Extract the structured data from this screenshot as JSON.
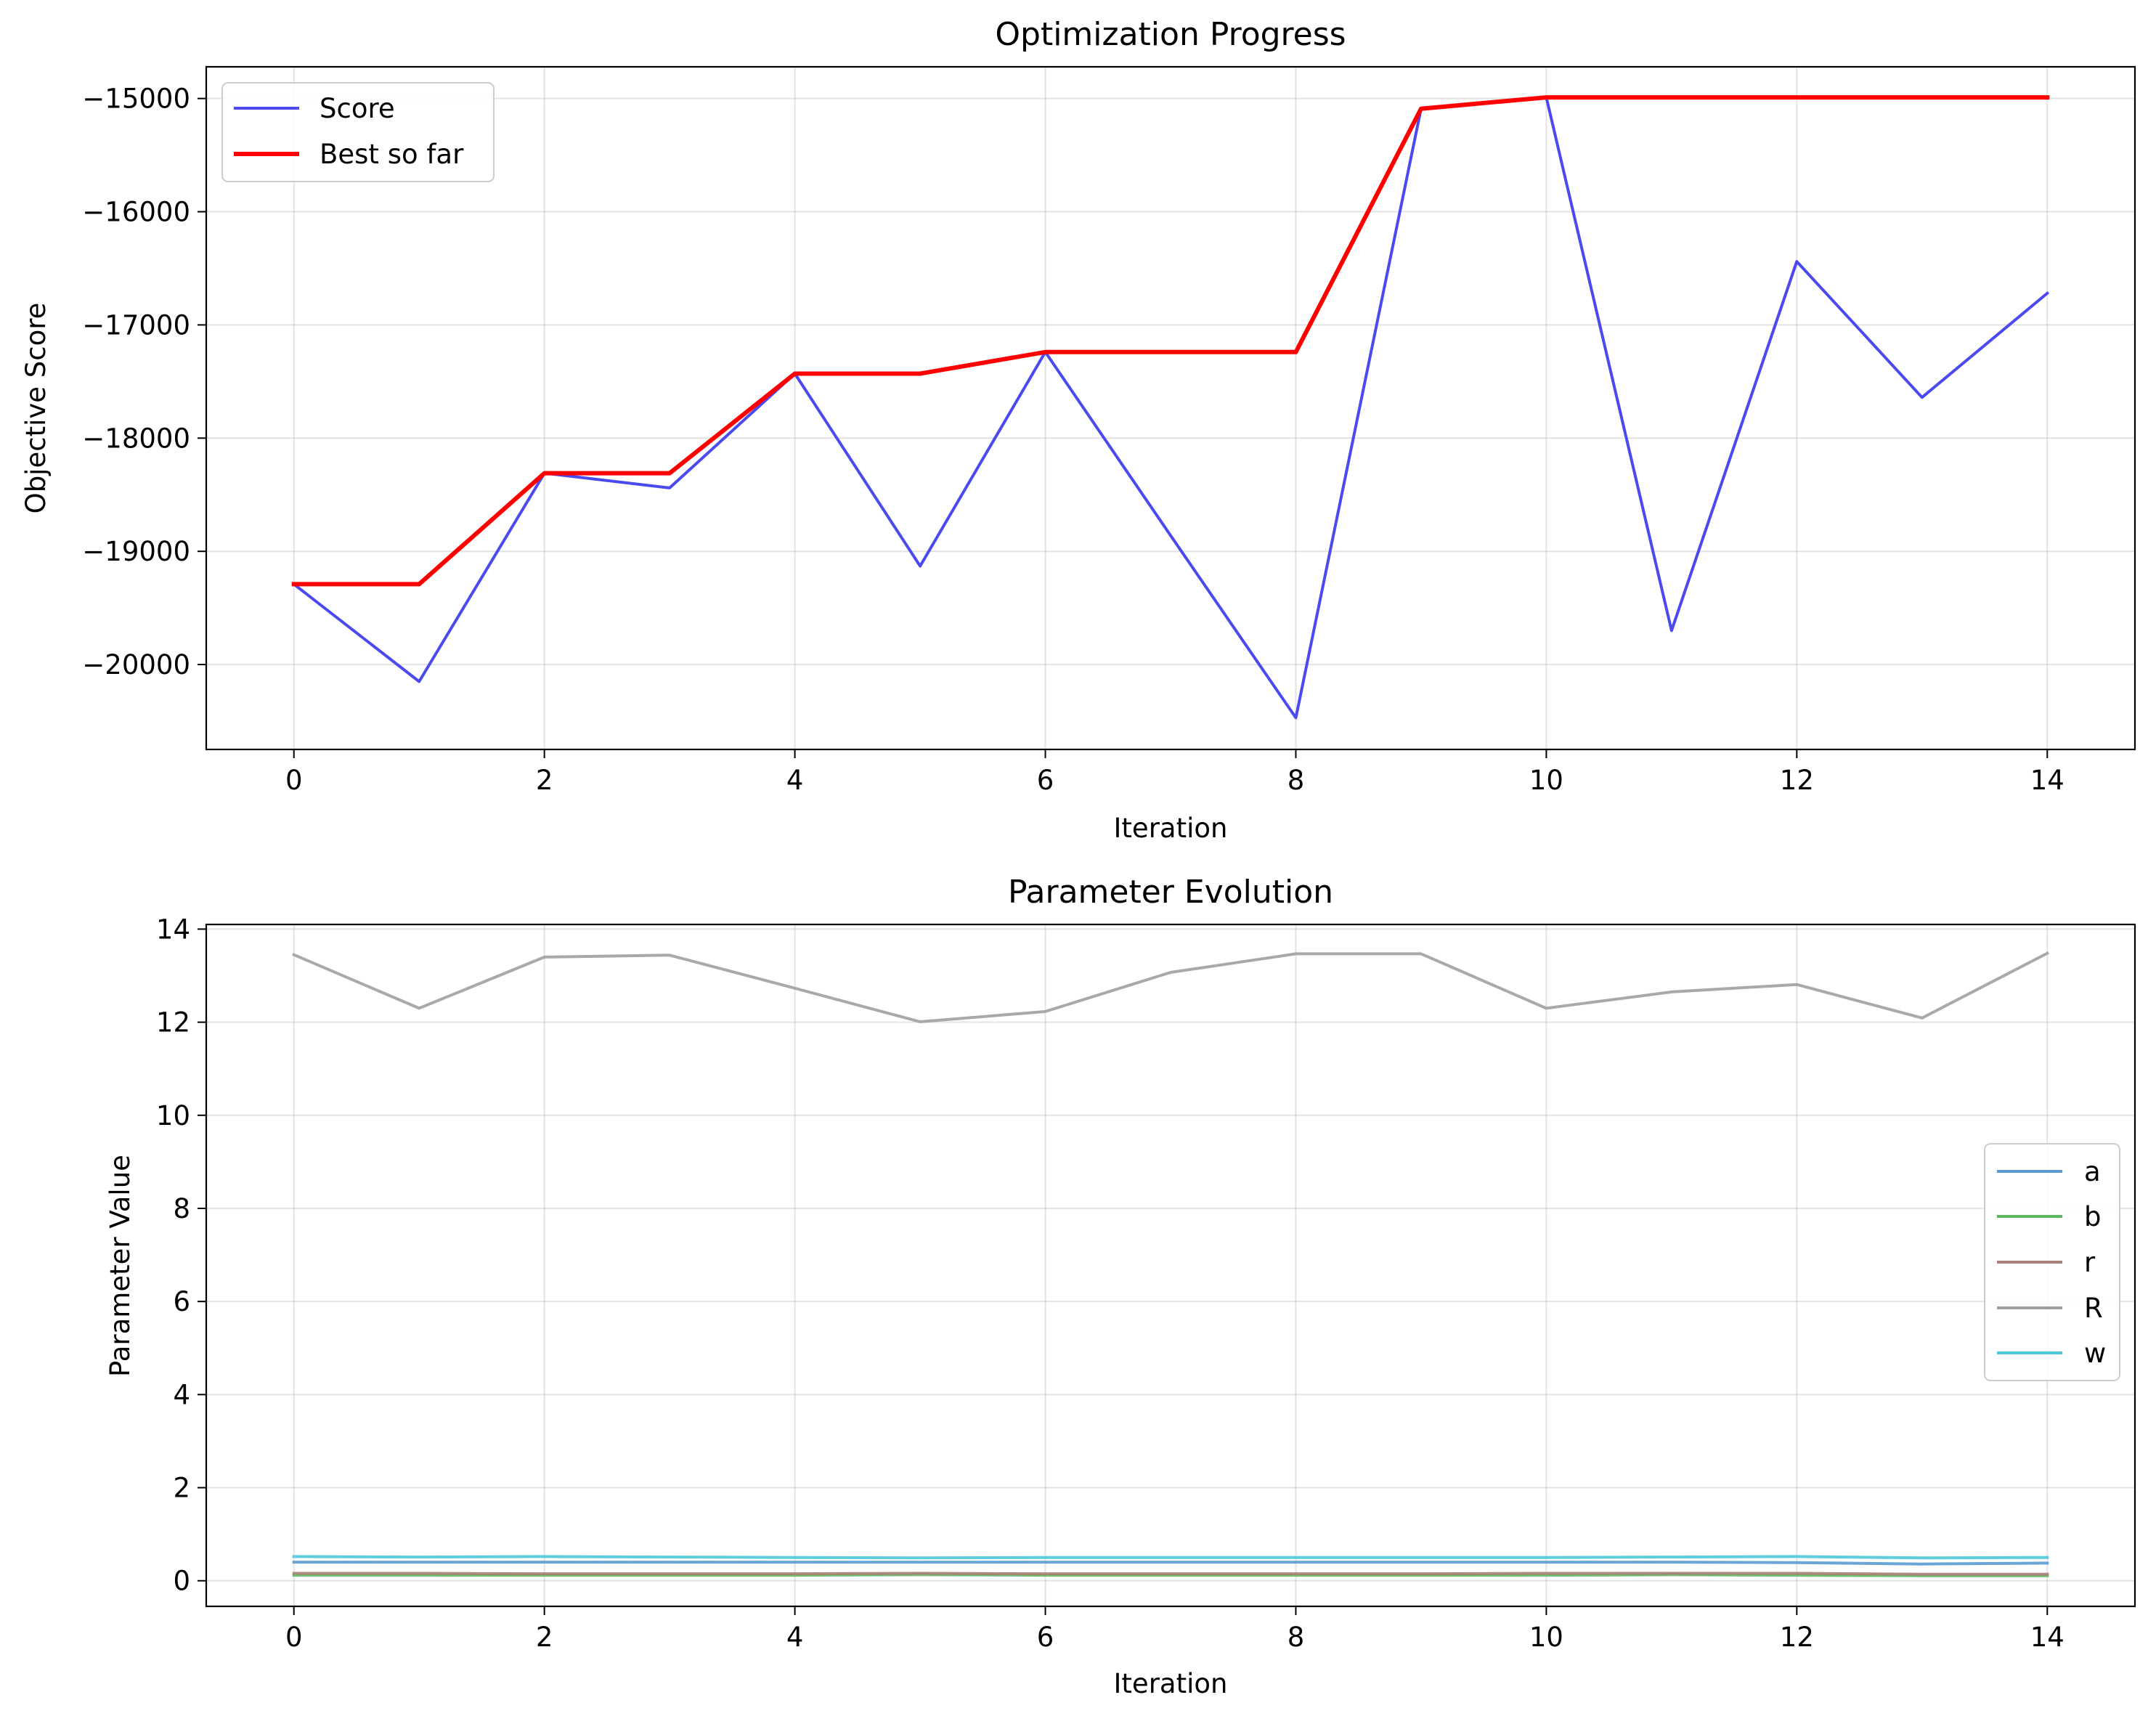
{
  "chart_data": [
    {
      "type": "line",
      "title": "Optimization Progress",
      "xlabel": "Iteration",
      "ylabel": "Objective Score",
      "xlim": [
        -0.7,
        14.7
      ],
      "ylim": [
        -20750,
        -14720
      ],
      "xticks": [
        0,
        2,
        4,
        6,
        8,
        10,
        12,
        14
      ],
      "yticks": [
        -20000,
        -19000,
        -18000,
        -17000,
        -16000,
        -15000
      ],
      "ytick_labels": [
        "−20000",
        "−19000",
        "−18000",
        "−17000",
        "−16000",
        "−15000"
      ],
      "grid": true,
      "legend_position": "top-left",
      "x": [
        0,
        1,
        2,
        3,
        4,
        5,
        6,
        7,
        8,
        9,
        10,
        11,
        12,
        13,
        14
      ],
      "series": [
        {
          "name": "Score",
          "color": "#4a4af0",
          "values": [
            -19290,
            -20150,
            -18310,
            -18440,
            -17430,
            -19130,
            -17240,
            -18860,
            -20470,
            -15090,
            -14990,
            -19700,
            -16440,
            -17640,
            -16720
          ]
        },
        {
          "name": "Best so far",
          "color": "#ff0000",
          "values": [
            -19290,
            -19290,
            -18310,
            -18310,
            -17430,
            -17430,
            -17240,
            -17240,
            -17240,
            -15090,
            -14990,
            -14990,
            -14990,
            -14990,
            -14990
          ]
        }
      ]
    },
    {
      "type": "line",
      "title": "Parameter Evolution",
      "xlabel": "Iteration",
      "ylabel": "Parameter Value",
      "xlim": [
        -0.7,
        14.7
      ],
      "ylim": [
        -0.55,
        14.1
      ],
      "xticks": [
        0,
        2,
        4,
        6,
        8,
        10,
        12,
        14
      ],
      "yticks": [
        0,
        2,
        4,
        6,
        8,
        10,
        12,
        14
      ],
      "ytick_labels": [
        "0",
        "2",
        "4",
        "6",
        "8",
        "10",
        "12",
        "14"
      ],
      "grid": true,
      "legend_position": "center-right",
      "x": [
        0,
        1,
        2,
        3,
        4,
        5,
        6,
        7,
        8,
        9,
        10,
        11,
        12,
        13,
        14
      ],
      "series": [
        {
          "name": "a",
          "color": "#5b9bd0",
          "values": [
            0.4,
            0.4,
            0.4,
            0.4,
            0.4,
            0.4,
            0.4,
            0.4,
            0.4,
            0.4,
            0.4,
            0.4,
            0.39,
            0.36,
            0.38
          ]
        },
        {
          "name": "b",
          "color": "#5cb85c",
          "values": [
            0.12,
            0.12,
            0.12,
            0.12,
            0.12,
            0.13,
            0.12,
            0.12,
            0.12,
            0.12,
            0.12,
            0.13,
            0.12,
            0.11,
            0.11
          ]
        },
        {
          "name": "r",
          "color": "#a88078",
          "values": [
            0.16,
            0.16,
            0.15,
            0.15,
            0.15,
            0.16,
            0.15,
            0.15,
            0.15,
            0.15,
            0.16,
            0.16,
            0.16,
            0.14,
            0.14
          ]
        },
        {
          "name": "R",
          "color": "#a0a0a0",
          "values": [
            13.45,
            12.3,
            13.4,
            13.44,
            12.73,
            12.01,
            12.23,
            13.07,
            13.47,
            13.47,
            12.3,
            12.65,
            12.81,
            12.09,
            13.48
          ]
        },
        {
          "name": "w",
          "color": "#4cc8d8",
          "values": [
            0.52,
            0.51,
            0.52,
            0.51,
            0.5,
            0.49,
            0.5,
            0.5,
            0.5,
            0.5,
            0.5,
            0.51,
            0.52,
            0.49,
            0.5
          ]
        }
      ]
    }
  ]
}
